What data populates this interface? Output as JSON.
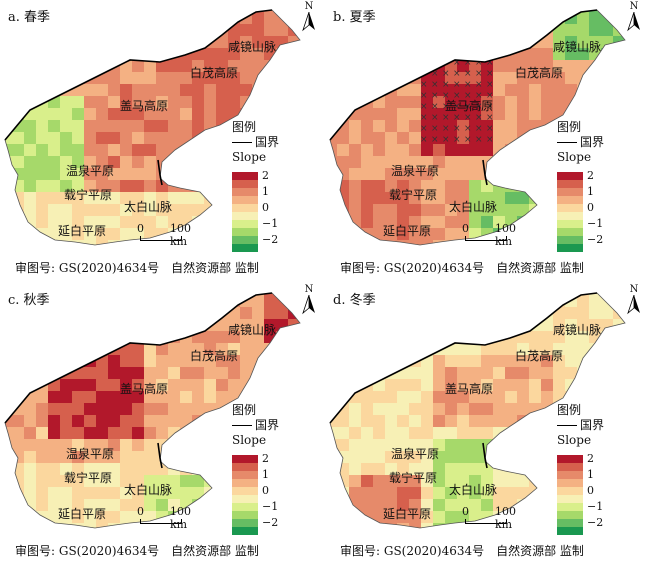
{
  "panels": [
    {
      "id": "a",
      "title": "a. 春季",
      "season": "spring"
    },
    {
      "id": "b",
      "title": "b. 夏季",
      "season": "summer"
    },
    {
      "id": "c",
      "title": "c. 秋季",
      "season": "autumn"
    },
    {
      "id": "d",
      "title": "d. 冬季",
      "season": "winter"
    }
  ],
  "places": {
    "xianjing": "咸镜山脉",
    "baimao": "白茂高原",
    "gaima": "盖马高原",
    "wenquan": "温泉平原",
    "zaining": "载宁平原",
    "taibai": "太白山脉",
    "yanbai": "延白平原"
  },
  "legend": {
    "title": "图例",
    "border": "国界",
    "slope": "Slope"
  },
  "colorbar": {
    "colors": [
      "#b2182b",
      "#d6604d",
      "#e68a6a",
      "#f4b183",
      "#fbd79e",
      "#f7f0b5",
      "#d9ef8b",
      "#a6d96a",
      "#66bd63",
      "#1a9850"
    ],
    "ticks": [
      "2",
      "1",
      "0",
      "−1",
      "−2"
    ]
  },
  "scale": {
    "zero": "0",
    "label": "100 km"
  },
  "north": "N",
  "footer": "审图号: GS(2020)4634号　自然资源部 监制"
}
